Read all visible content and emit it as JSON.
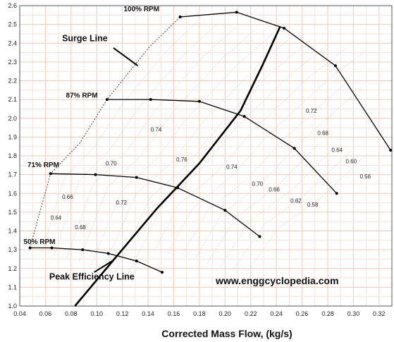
{
  "chart_data": {
    "type": "line",
    "xlabel": "Corrected Mass Flow, (kg/s)",
    "ylabel": "",
    "xlim": [
      0.04,
      0.33
    ],
    "ylim": [
      1.0,
      2.6
    ],
    "x_ticks": [
      "0.04",
      "0.06",
      "0.08",
      "0.10",
      "0.12",
      "0.14",
      "0.16",
      "0.18",
      "0.20",
      "0.22",
      "0.24",
      "0.26",
      "0.28",
      "0.30",
      "0.32"
    ],
    "y_ticks": [
      "1.0",
      "1.1",
      "1.2",
      "1.3",
      "1.4",
      "1.5",
      "1.6",
      "1.7",
      "1.8",
      "1.9",
      "2.0",
      "2.1",
      "2.2",
      "2.3",
      "2.4",
      "2.5",
      "2.6"
    ],
    "grid": true,
    "watermark": "www.enggcyclopedia.com",
    "series": [
      {
        "name": "100% RPM",
        "points": [
          [
            0.165,
            2.54
          ],
          [
            0.209,
            2.565
          ],
          [
            0.246,
            2.48
          ],
          [
            0.286,
            2.28
          ],
          [
            0.329,
            1.83
          ]
        ]
      },
      {
        "name": "87% RPM",
        "points": [
          [
            0.108,
            2.1
          ],
          [
            0.142,
            2.1
          ],
          [
            0.18,
            2.09
          ],
          [
            0.215,
            2.01
          ],
          [
            0.254,
            1.84
          ],
          [
            0.287,
            1.6
          ]
        ]
      },
      {
        "name": "71% RPM",
        "points": [
          [
            0.064,
            1.705
          ],
          [
            0.099,
            1.7
          ],
          [
            0.131,
            1.685
          ],
          [
            0.163,
            1.63
          ],
          [
            0.2,
            1.51
          ],
          [
            0.227,
            1.37
          ]
        ]
      },
      {
        "name": "50% RPM",
        "points": [
          [
            0.048,
            1.31
          ],
          [
            0.065,
            1.31
          ],
          [
            0.089,
            1.3
          ],
          [
            0.109,
            1.28
          ],
          [
            0.131,
            1.24
          ],
          [
            0.151,
            1.18
          ]
        ]
      }
    ],
    "surge_line": [
      [
        0.048,
        1.31
      ],
      [
        0.054,
        1.46
      ],
      [
        0.064,
        1.705
      ],
      [
        0.087,
        1.87
      ],
      [
        0.108,
        2.1
      ],
      [
        0.141,
        2.38
      ],
      [
        0.165,
        2.54
      ]
    ],
    "peak_efficiency_line": [
      [
        0.083,
        1.0
      ],
      [
        0.11,
        1.22
      ],
      [
        0.147,
        1.52
      ],
      [
        0.18,
        1.76
      ],
      [
        0.212,
        2.04
      ],
      [
        0.229,
        2.28
      ],
      [
        0.243,
        2.49
      ]
    ],
    "efficiency_labels": [
      {
        "label": "0.74",
        "x": 0.142,
        "y": 1.93
      },
      {
        "label": "0.72",
        "x": 0.263,
        "y": 2.03
      },
      {
        "label": "0.68",
        "x": 0.272,
        "y": 1.91
      },
      {
        "label": "0.64",
        "x": 0.283,
        "y": 1.82
      },
      {
        "label": "0.60",
        "x": 0.294,
        "y": 1.76
      },
      {
        "label": "0.56",
        "x": 0.305,
        "y": 1.68
      },
      {
        "label": "0.70",
        "x": 0.107,
        "y": 1.75
      },
      {
        "label": "0.76",
        "x": 0.162,
        "y": 1.77
      },
      {
        "label": "0.74",
        "x": 0.201,
        "y": 1.73
      },
      {
        "label": "0.70",
        "x": 0.221,
        "y": 1.64
      },
      {
        "label": "0.66",
        "x": 0.234,
        "y": 1.61
      },
      {
        "label": "0.62",
        "x": 0.251,
        "y": 1.55
      },
      {
        "label": "0.58",
        "x": 0.264,
        "y": 1.53
      },
      {
        "label": "0.66",
        "x": 0.073,
        "y": 1.57
      },
      {
        "label": "0.72",
        "x": 0.115,
        "y": 1.54
      },
      {
        "label": "0.64",
        "x": 0.064,
        "y": 1.46
      },
      {
        "label": "0.68",
        "x": 0.083,
        "y": 1.41
      }
    ],
    "rpm_labels": [
      {
        "label": "100% RPM",
        "x": 0.121,
        "y": 2.57
      },
      {
        "label": "87% RPM",
        "x": 0.076,
        "y": 2.11
      },
      {
        "label": "71% RPM",
        "x": 0.046,
        "y": 1.74
      },
      {
        "label": "50% RPM",
        "x": 0.043,
        "y": 1.33
      }
    ],
    "annotations": [
      {
        "label": "Surge Line",
        "x": 0.073,
        "y": 2.41
      },
      {
        "label": "Peak Efficiency Line",
        "x": 0.063,
        "y": 1.14
      }
    ]
  }
}
